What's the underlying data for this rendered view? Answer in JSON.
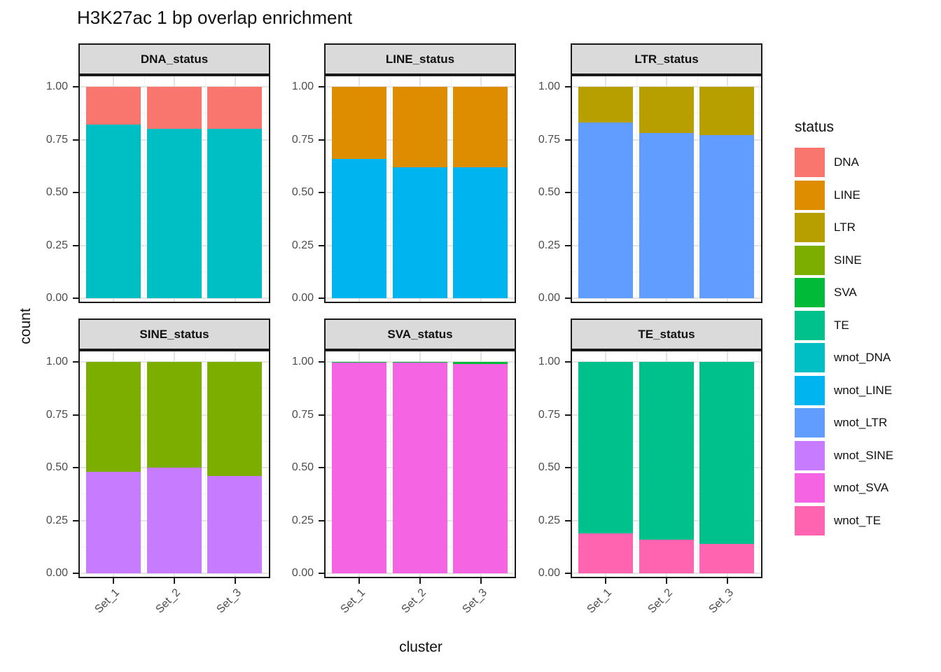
{
  "title": "H3K27ac 1 bp overlap enrichment",
  "axes": {
    "y_title": "count",
    "x_title": "cluster",
    "y_ticks": [
      "1.00",
      "0.75",
      "0.50",
      "0.25",
      "0.00"
    ],
    "y_tick_values": [
      1,
      0.75,
      0.5,
      0.25,
      0
    ],
    "x_ticks": [
      "Set_1",
      "Set_2",
      "Set_3"
    ]
  },
  "legend": {
    "title": "status",
    "items": [
      {
        "label": "DNA",
        "color": "#F8766D"
      },
      {
        "label": "LINE",
        "color": "#DE8C00"
      },
      {
        "label": "LTR",
        "color": "#B79F00"
      },
      {
        "label": "SINE",
        "color": "#7CAE00"
      },
      {
        "label": "SVA",
        "color": "#00BA38"
      },
      {
        "label": "TE",
        "color": "#00C08B"
      },
      {
        "label": "wnot_DNA",
        "color": "#00BFC4"
      },
      {
        "label": "wnot_LINE",
        "color": "#00B4F0"
      },
      {
        "label": "wnot_LTR",
        "color": "#619CFF"
      },
      {
        "label": "wnot_SINE",
        "color": "#C77CFF"
      },
      {
        "label": "wnot_SVA",
        "color": "#F564E3"
      },
      {
        "label": "wnot_TE",
        "color": "#FF64B0"
      }
    ]
  },
  "style_colors": {
    "strip_fill": "#DADADA",
    "panel_border": "#1a1a1a",
    "grid_major": "#E3E3E3",
    "grid_minor": "#F1F1F1",
    "tick_label": "#4D4D4D"
  },
  "chart_data": {
    "type": "bar",
    "stacked": true,
    "normalized": true,
    "title": "H3K27ac 1 bp overlap enrichment",
    "xlabel": "cluster",
    "ylabel": "count",
    "ylim": [
      0,
      1
    ],
    "grid": true,
    "legend_position": "right",
    "categories": [
      "Set_1",
      "Set_2",
      "Set_3"
    ],
    "facets": [
      {
        "title": "DNA_status",
        "series": [
          {
            "name": "wnot_DNA",
            "color": "#00BFC4",
            "values": [
              0.82,
              0.8,
              0.8
            ]
          },
          {
            "name": "DNA",
            "color": "#F8766D",
            "values": [
              0.18,
              0.2,
              0.2
            ]
          }
        ]
      },
      {
        "title": "LINE_status",
        "series": [
          {
            "name": "wnot_LINE",
            "color": "#00B4F0",
            "values": [
              0.66,
              0.62,
              0.62
            ]
          },
          {
            "name": "LINE",
            "color": "#DE8C00",
            "values": [
              0.34,
              0.38,
              0.38
            ]
          }
        ]
      },
      {
        "title": "LTR_status",
        "series": [
          {
            "name": "wnot_LTR",
            "color": "#619CFF",
            "values": [
              0.83,
              0.78,
              0.77
            ]
          },
          {
            "name": "LTR",
            "color": "#B79F00",
            "values": [
              0.17,
              0.22,
              0.23
            ]
          }
        ]
      },
      {
        "title": "SINE_status",
        "series": [
          {
            "name": "wnot_SINE",
            "color": "#C77CFF",
            "values": [
              0.48,
              0.5,
              0.46
            ]
          },
          {
            "name": "SINE",
            "color": "#7CAE00",
            "values": [
              0.52,
              0.5,
              0.54
            ]
          }
        ]
      },
      {
        "title": "SVA_status",
        "series": [
          {
            "name": "wnot_SVA",
            "color": "#F564E3",
            "values": [
              0.997,
              0.997,
              0.991
            ]
          },
          {
            "name": "SVA",
            "color": "#00BA38",
            "values": [
              0.003,
              0.003,
              0.009
            ]
          }
        ]
      },
      {
        "title": "TE_status",
        "series": [
          {
            "name": "wnot_TE",
            "color": "#FF64B0",
            "values": [
              0.19,
              0.16,
              0.14
            ]
          },
          {
            "name": "TE",
            "color": "#00C08B",
            "values": [
              0.81,
              0.84,
              0.86
            ]
          }
        ]
      }
    ]
  }
}
